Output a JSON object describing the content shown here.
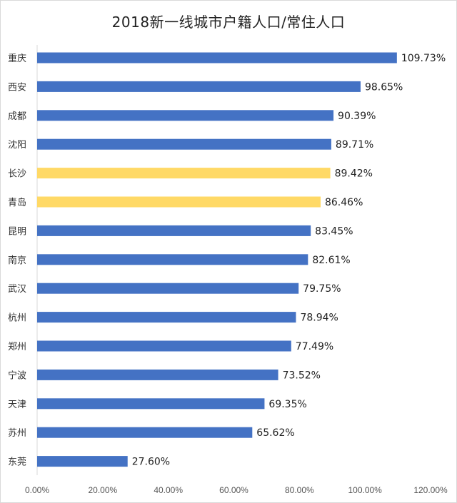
{
  "chart_data": {
    "type": "bar",
    "orientation": "horizontal",
    "title": "2018新一线城市户籍人口/常住人口",
    "xlabel": "",
    "ylabel": "",
    "xlim": [
      0,
      120
    ],
    "ticks": [
      {
        "value": 0,
        "label": "0.00%"
      },
      {
        "value": 20,
        "label": "20.00%"
      },
      {
        "value": 40,
        "label": "40.00%"
      },
      {
        "value": 60,
        "label": "60.00%"
      },
      {
        "value": 80,
        "label": "80.00%"
      },
      {
        "value": 100,
        "label": "100.00%"
      },
      {
        "value": 120,
        "label": "120.00%"
      }
    ],
    "grid": false,
    "legend": "none",
    "colors": {
      "default": "#4472c4",
      "highlight": "#ffd966"
    },
    "bars": [
      {
        "category": "重庆",
        "value": 109.73,
        "label": "109.73%",
        "highlight": false
      },
      {
        "category": "西安",
        "value": 98.65,
        "label": "98.65%",
        "highlight": false
      },
      {
        "category": "成都",
        "value": 90.39,
        "label": "90.39%",
        "highlight": false
      },
      {
        "category": "沈阳",
        "value": 89.71,
        "label": "89.71%",
        "highlight": false
      },
      {
        "category": "长沙",
        "value": 89.42,
        "label": "89.42%",
        "highlight": true
      },
      {
        "category": "青岛",
        "value": 86.46,
        "label": "86.46%",
        "highlight": true
      },
      {
        "category": "昆明",
        "value": 83.45,
        "label": "83.45%",
        "highlight": false
      },
      {
        "category": "南京",
        "value": 82.61,
        "label": "82.61%",
        "highlight": false
      },
      {
        "category": "武汉",
        "value": 79.75,
        "label": "79.75%",
        "highlight": false
      },
      {
        "category": "杭州",
        "value": 78.94,
        "label": "78.94%",
        "highlight": false
      },
      {
        "category": "郑州",
        "value": 77.49,
        "label": "77.49%",
        "highlight": false
      },
      {
        "category": "宁波",
        "value": 73.52,
        "label": "73.52%",
        "highlight": false
      },
      {
        "category": "天津",
        "value": 69.35,
        "label": "69.35%",
        "highlight": false
      },
      {
        "category": "苏州",
        "value": 65.62,
        "label": "65.62%",
        "highlight": false
      },
      {
        "category": "东莞",
        "value": 27.6,
        "label": "27.60%",
        "highlight": false
      }
    ]
  }
}
